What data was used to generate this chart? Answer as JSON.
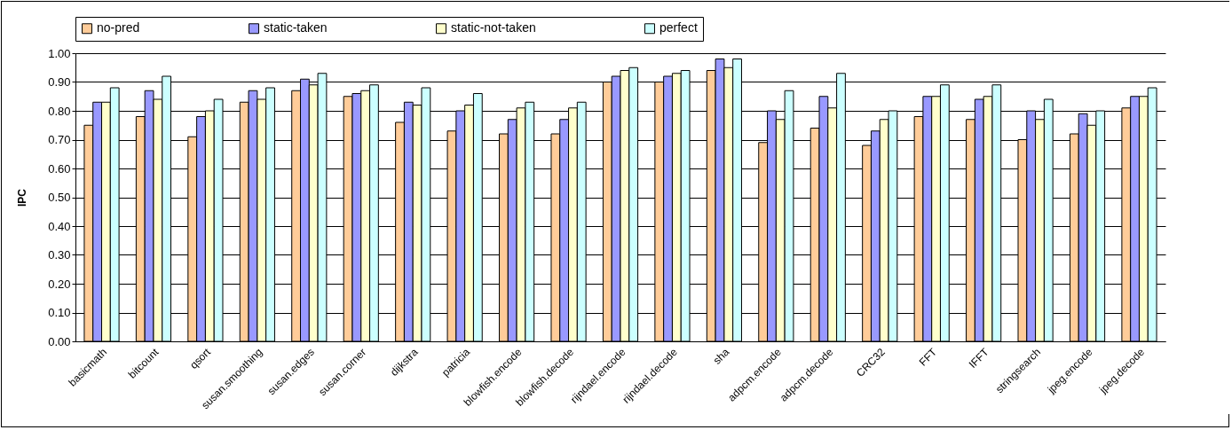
{
  "chart_data": {
    "type": "bar",
    "ylabel": "IPC",
    "categories": [
      "basicmath",
      "bitcount",
      "qsort",
      "susan.smoothing",
      "susan.edges",
      "susan.corner",
      "dijkstra",
      "patricia",
      "blowfish.encode",
      "blowfish.decode",
      "rijndael.encode",
      "rijndael.decode",
      "sha",
      "adpcm.encode",
      "adpcm.decode",
      "CRC32",
      "FFT",
      "IFFT",
      "stringsearch",
      "jpeg.encode",
      "jpeg.decode"
    ],
    "series": [
      {
        "name": "no-pred",
        "color": "#ffcc99",
        "values": [
          0.75,
          0.78,
          0.71,
          0.83,
          0.87,
          0.85,
          0.76,
          0.73,
          0.72,
          0.72,
          0.9,
          0.9,
          0.94,
          0.69,
          0.74,
          0.68,
          0.78,
          0.77,
          0.7,
          0.72,
          0.81
        ]
      },
      {
        "name": "static-taken",
        "color": "#9999ff",
        "values": [
          0.83,
          0.87,
          0.78,
          0.87,
          0.91,
          0.86,
          0.83,
          0.8,
          0.77,
          0.77,
          0.92,
          0.92,
          0.98,
          0.8,
          0.85,
          0.73,
          0.85,
          0.84,
          0.8,
          0.79,
          0.85
        ]
      },
      {
        "name": "static-not-taken",
        "color": "#ffffcc",
        "values": [
          0.83,
          0.84,
          0.8,
          0.84,
          0.89,
          0.87,
          0.82,
          0.82,
          0.81,
          0.81,
          0.94,
          0.93,
          0.95,
          0.77,
          0.81,
          0.77,
          0.85,
          0.85,
          0.77,
          0.75,
          0.85
        ]
      },
      {
        "name": "perfect",
        "color": "#ccffff",
        "values": [
          0.88,
          0.92,
          0.84,
          0.88,
          0.93,
          0.89,
          0.88,
          0.86,
          0.83,
          0.83,
          0.95,
          0.94,
          0.98,
          0.87,
          0.93,
          0.8,
          0.89,
          0.89,
          0.84,
          0.8,
          0.88
        ]
      }
    ],
    "ylim": [
      0,
      1
    ],
    "yticks": [
      {
        "value": 0,
        "label": "0.00"
      },
      {
        "value": 0.1,
        "label": "0.10"
      },
      {
        "value": 0.2,
        "label": "0.20"
      },
      {
        "value": 0.3,
        "label": "0.30"
      },
      {
        "value": 0.4,
        "label": "0.40"
      },
      {
        "value": 0.5,
        "label": "0.50"
      },
      {
        "value": 0.6,
        "label": "0.60"
      },
      {
        "value": 0.7,
        "label": "0.70"
      },
      {
        "value": 0.8,
        "label": "0.80"
      },
      {
        "value": 0.9,
        "label": "0.90"
      },
      {
        "value": 1,
        "label": "1.00"
      }
    ],
    "grid": "y",
    "legend": "top"
  }
}
